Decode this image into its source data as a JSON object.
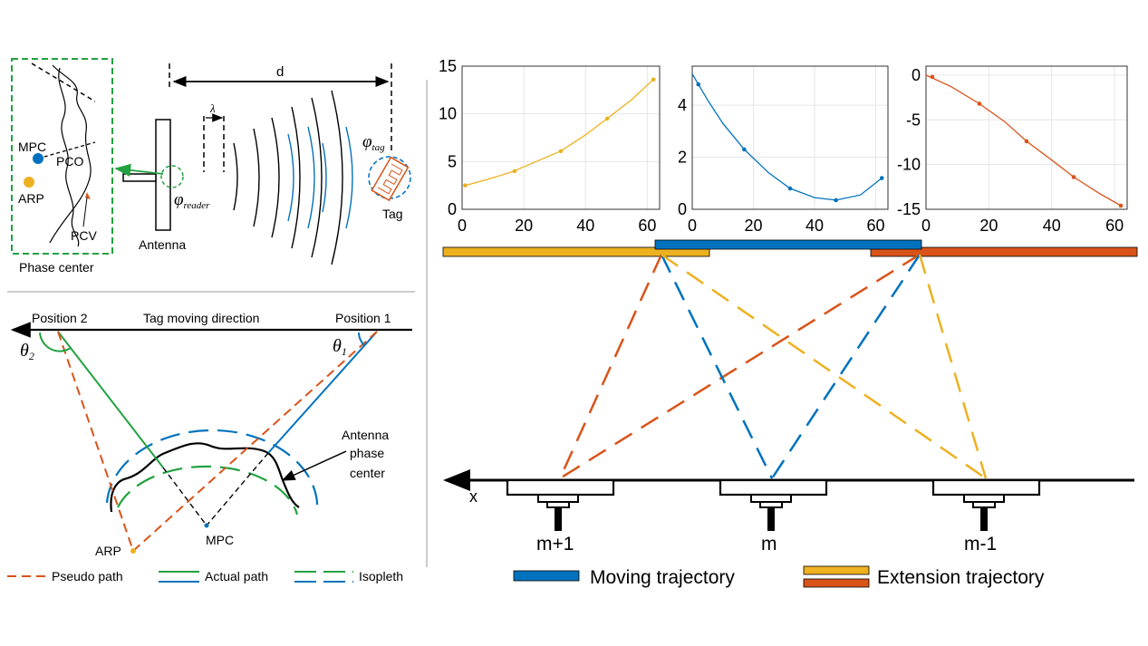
{
  "colors": {
    "yellow": "#EDB120",
    "blue": "#0072BD",
    "orange": "#D95319",
    "green": "#22A140",
    "black": "#000000"
  },
  "phase_center_panel": {
    "mpc": "MPC",
    "pco": "PCO",
    "arp": "ARP",
    "pcv": "PCV",
    "caption": "Phase center"
  },
  "antenna_panel": {
    "d": "d",
    "lambda": "λ",
    "phi_reader": "φ",
    "phi_reader_sub": "reader",
    "phi_tag": "φ",
    "phi_tag_sub": "tag",
    "antenna": "Antenna",
    "tag": "Tag"
  },
  "motion_panel": {
    "position2": "Position 2",
    "position1": "Position 1",
    "direction": "Tag moving direction",
    "theta2": "θ",
    "theta2_sub": "2",
    "theta1": "θ",
    "theta1_sub": "1",
    "apc_line1": "Antenna",
    "apc_line2": "phase",
    "apc_line3": "center",
    "mpc": "MPC",
    "arp": "ARP"
  },
  "legend_left": {
    "pseudo": "Pseudo path",
    "actual": "Actual path",
    "isopleth": "Isopleth"
  },
  "trajectory_panel": {
    "axis": "x",
    "antennas": [
      "m+1",
      "m",
      "m-1"
    ],
    "moving": "Moving trajectory",
    "extension": "Extension trajectory"
  },
  "chart_data": [
    {
      "type": "line",
      "title": "",
      "xlabel": "",
      "ylabel": "",
      "xlim": [
        0,
        64
      ],
      "ylim": [
        0,
        15
      ],
      "xticks": [
        "0",
        "20",
        "40",
        "60"
      ],
      "yticks": [
        "0",
        "5",
        "10",
        "15"
      ],
      "color": "#EDB120",
      "x": [
        1,
        8,
        16,
        24,
        32,
        40,
        47,
        55,
        62
      ],
      "y": [
        2.5,
        3.1,
        3.9,
        5.0,
        6.1,
        7.8,
        9.5,
        11.5,
        13.6
      ],
      "markers": [
        [
          1,
          2.5
        ],
        [
          17,
          4.0
        ],
        [
          32,
          6.1
        ],
        [
          47,
          9.5
        ],
        [
          62,
          13.6
        ]
      ]
    },
    {
      "type": "line",
      "title": "",
      "xlabel": "",
      "ylabel": "",
      "xlim": [
        0,
        64
      ],
      "ylim": [
        0,
        5.5
      ],
      "xticks": [
        "0",
        "20",
        "40",
        "60"
      ],
      "yticks": [
        "0",
        "2",
        "4"
      ],
      "color": "#0072BD",
      "x": [
        0,
        5,
        10,
        17,
        25,
        32,
        40,
        47,
        55,
        62
      ],
      "y": [
        5.2,
        4.2,
        3.3,
        2.3,
        1.4,
        0.8,
        0.45,
        0.35,
        0.55,
        1.2
      ],
      "markers": [
        [
          2,
          4.8
        ],
        [
          17,
          2.3
        ],
        [
          32,
          0.8
        ],
        [
          47,
          0.35
        ],
        [
          62,
          1.2
        ]
      ]
    },
    {
      "type": "line",
      "title": "",
      "xlabel": "",
      "ylabel": "",
      "xlim": [
        0,
        64
      ],
      "ylim": [
        -15,
        1
      ],
      "xticks": [
        "0",
        "20",
        "40",
        "60"
      ],
      "yticks": [
        "0",
        "-5",
        "-10",
        "-15"
      ],
      "color": "#D95319",
      "x": [
        0,
        8,
        17,
        25,
        32,
        40,
        47,
        55,
        62
      ],
      "y": [
        0,
        -1.3,
        -3.2,
        -5.2,
        -7.4,
        -9.5,
        -11.4,
        -13.2,
        -14.6
      ],
      "markers": [
        [
          2,
          -0.2
        ],
        [
          17,
          -3.2
        ],
        [
          32,
          -7.4
        ],
        [
          47,
          -11.4
        ],
        [
          62,
          -14.6
        ]
      ]
    }
  ]
}
